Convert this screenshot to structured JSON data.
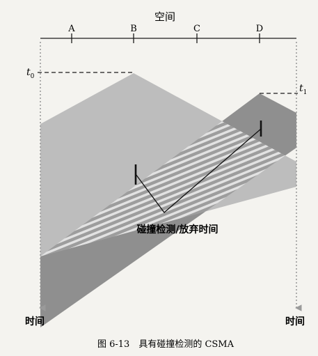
{
  "axis": {
    "space_label": "空间",
    "nodes": [
      "A",
      "B",
      "C",
      "D"
    ],
    "time_label_left": "时间",
    "time_label_right": "时间"
  },
  "markers": {
    "t0": "t",
    "t0_sub": "0",
    "t1": "t",
    "t1_sub": "1"
  },
  "annotation": "碰撞检测/放弃时间",
  "caption": "图 6-13　具有碰撞检测的 CSMA",
  "colors": {
    "signal_b": "#b9b9b9",
    "signal_d": "#8f8f8f",
    "overlap_stripe": "#6f6f6f",
    "time_axis": "#9a9a9a"
  }
}
